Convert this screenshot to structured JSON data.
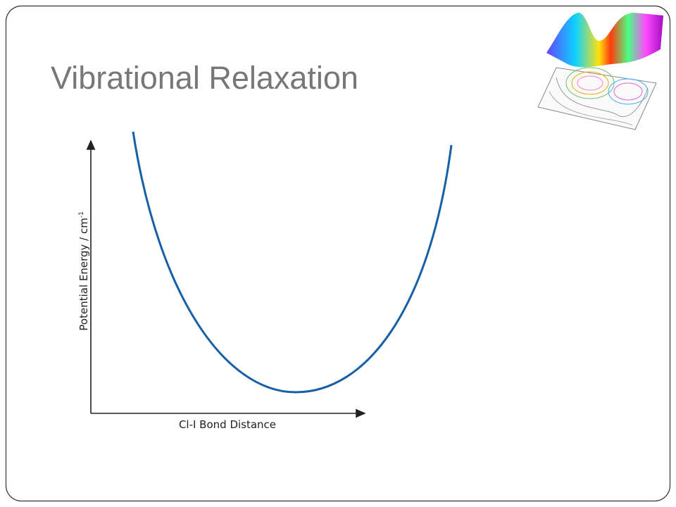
{
  "slide": {
    "title": "Vibrational Relaxation",
    "figure": {
      "y_axis_label": "Potential Energy / cm",
      "y_axis_label_superscript": "-1",
      "x_axis_label": "Cl-I Bond Distance"
    }
  }
}
